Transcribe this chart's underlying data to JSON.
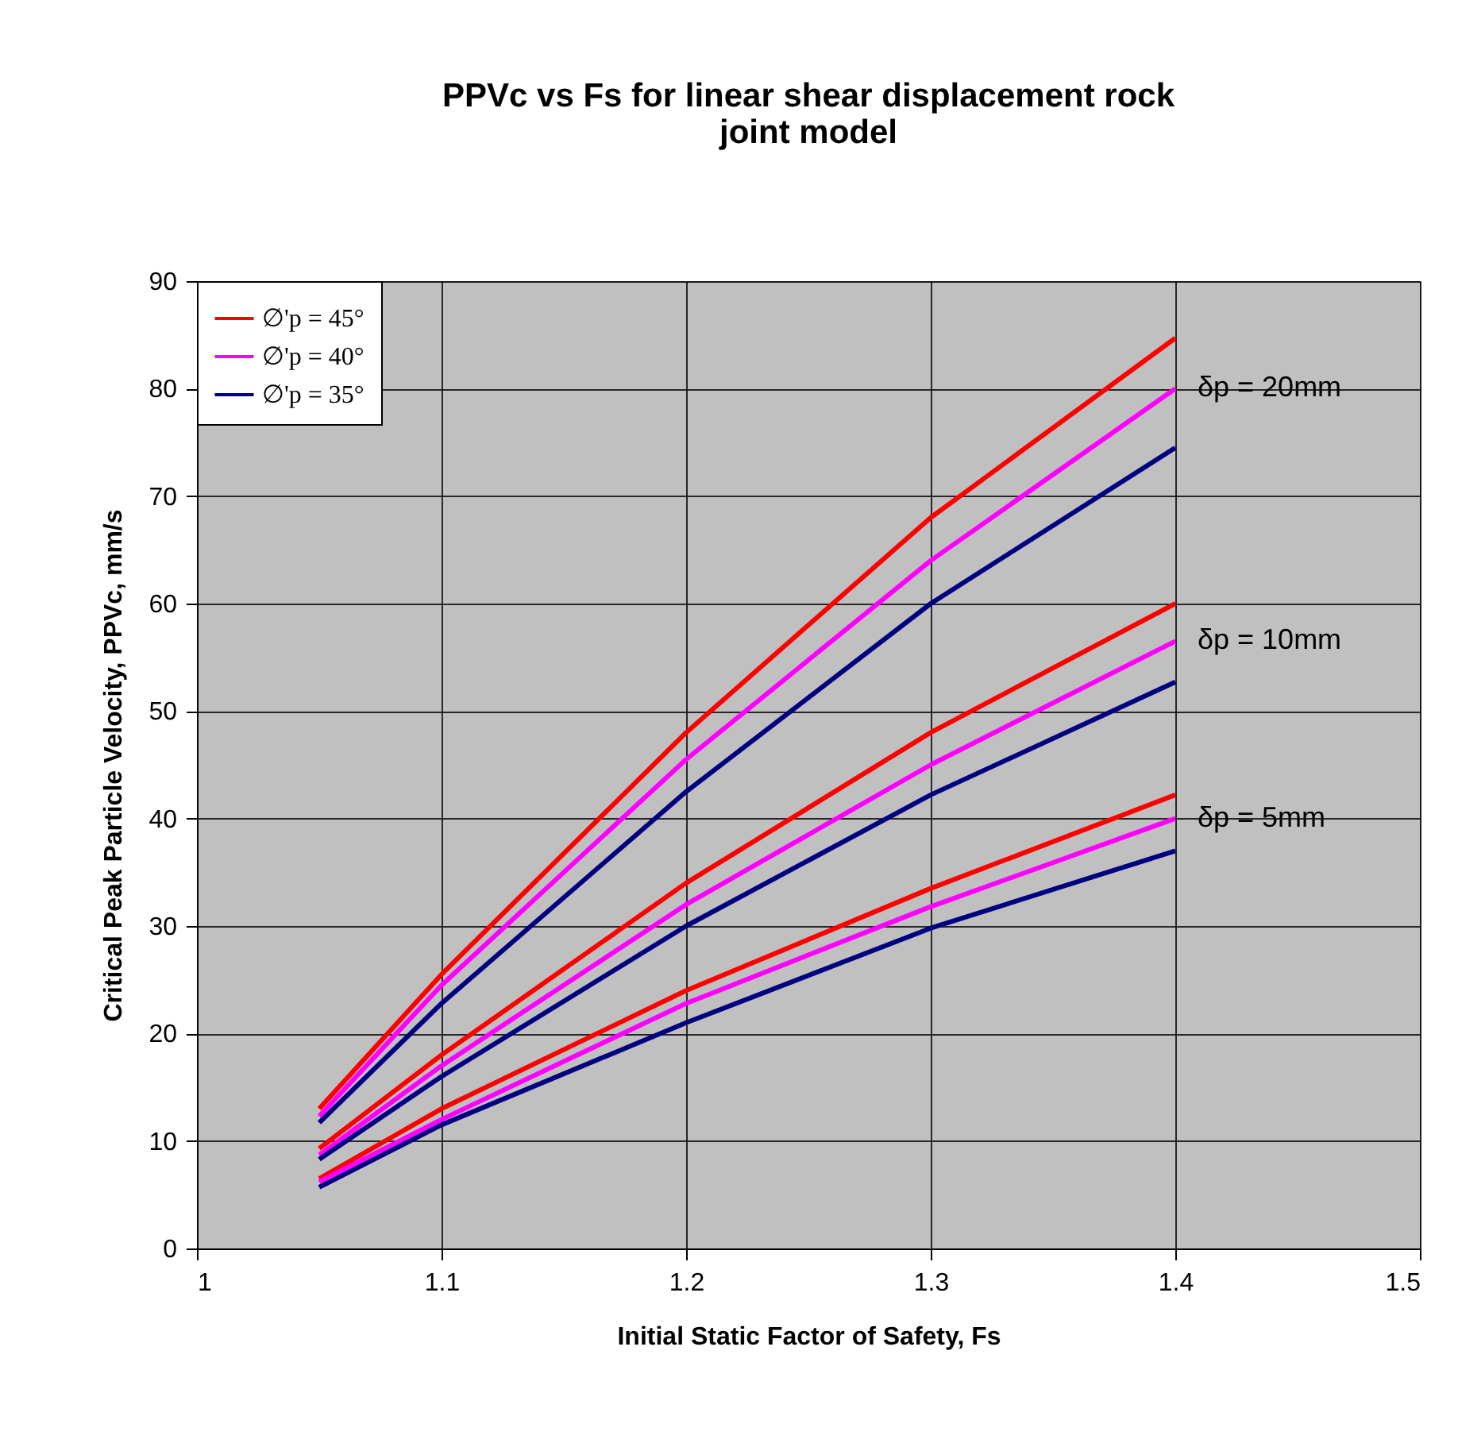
{
  "chart_data": {
    "type": "line",
    "title": "PPVc vs Fs for linear shear displacement rock joint model",
    "xlabel": "Initial Static Factor of Safety, Fs",
    "ylabel": "Critical Peak Particle Velocity, PPVc, mm/s",
    "x": [
      1.05,
      1.1,
      1.2,
      1.3,
      1.4
    ],
    "series": [
      {
        "name": "∅'p = 45°",
        "color": "#ff0000",
        "values": [
          13,
          25.5,
          48,
          68,
          84.7
        ]
      },
      {
        "name": "∅'p = 40°",
        "color": "#ff00ff",
        "values": [
          12.3,
          24.5,
          45.5,
          64,
          80
        ]
      },
      {
        "name": "∅'p = 35°",
        "color": "#000080",
        "values": [
          11.7,
          22.8,
          42.5,
          60,
          74.5
        ]
      },
      {
        "color": "#ff0000",
        "values": [
          9.3,
          18,
          34,
          48,
          60
        ]
      },
      {
        "color": "#ff00ff",
        "values": [
          8.7,
          17,
          32,
          45,
          56.5
        ]
      },
      {
        "color": "#000080",
        "values": [
          8.3,
          16,
          30,
          42.2,
          52.7
        ]
      },
      {
        "color": "#ff0000",
        "values": [
          6.5,
          13,
          24,
          33.5,
          42.2
        ]
      },
      {
        "color": "#ff00ff",
        "values": [
          6.2,
          12,
          22.8,
          31.8,
          40
        ]
      },
      {
        "color": "#000080",
        "values": [
          5.7,
          11.5,
          21,
          29.8,
          37
        ]
      }
    ],
    "annotations": [
      "δp = 20mm",
      "δp = 10mm",
      "δp = 5mm"
    ],
    "xlim": [
      1,
      1.5
    ],
    "xticks": [
      1,
      1.1,
      1.2,
      1.3,
      1.4,
      1.5
    ],
    "ylim": [
      0,
      90
    ],
    "yticks": [
      0,
      10,
      20,
      30,
      40,
      50,
      60,
      70,
      80,
      90
    ],
    "grid": true,
    "legend": "top left",
    "line_style": "solid",
    "marker": "none"
  }
}
